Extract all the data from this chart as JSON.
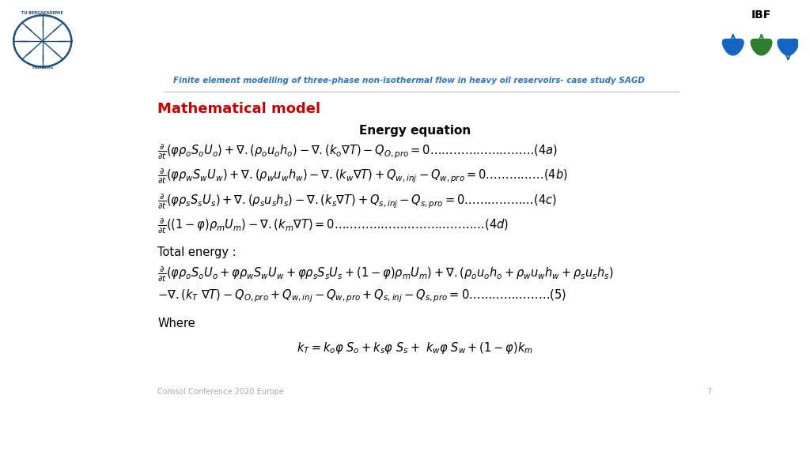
{
  "bg_color": "#ffffff",
  "header_text": "Finite element modelling of three-phase non-isothermal flow in heavy oil reservoirs- case study SAGD",
  "header_color": "#2E75B6",
  "title_text": "Mathematical model",
  "title_color": "#C00000",
  "subtitle_text": "Energy equation",
  "total_label": "Total energy :",
  "where_label": "Where",
  "footer_text": "Comsol Conference 2020 Europe",
  "page_number": "7"
}
